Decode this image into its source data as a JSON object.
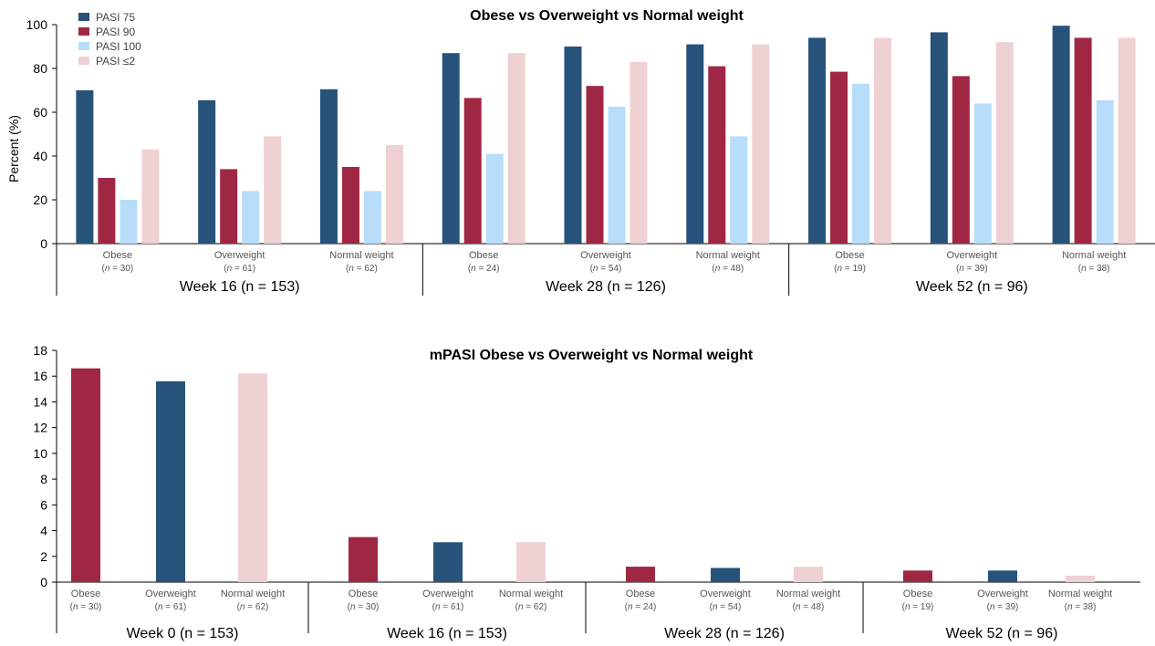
{
  "colors": {
    "PASI 75": "#27527a",
    "PASI 90": "#a02743",
    "PASI 100": "#b7ddfa",
    "PASI ≤2": "#efd1d3"
  },
  "chart_data": [
    {
      "type": "bar",
      "title": "Obese vs Overweight vs Normal weight",
      "ylabel": "Percent (%)",
      "ylim": [
        0,
        100
      ],
      "yticks": [
        "0",
        "20",
        "40",
        "60",
        "80",
        "100"
      ],
      "legend_position": "top-left",
      "series_names": [
        "PASI 75",
        "PASI 90",
        "PASI 100",
        "PASI ≤2"
      ],
      "groups": [
        {
          "week": "Week 16 (n = 153)",
          "categories": [
            {
              "label": "Obese",
              "n": "(n = 30)",
              "values": [
                70,
                30,
                20,
                43
              ]
            },
            {
              "label": "Overweight",
              "n": "(n = 61)",
              "values": [
                65.5,
                34,
                24,
                49
              ]
            },
            {
              "label": "Normal weight",
              "n": "(n = 62)",
              "values": [
                70.5,
                35,
                24,
                45
              ]
            }
          ]
        },
        {
          "week": "Week 28 (n = 126)",
          "categories": [
            {
              "label": "Obese",
              "n": "(n = 24)",
              "values": [
                87,
                66.5,
                41,
                87
              ]
            },
            {
              "label": "Overweight",
              "n": "(n = 54)",
              "values": [
                90,
                72,
                62.5,
                83
              ]
            },
            {
              "label": "Normal weight",
              "n": "(n = 48)",
              "values": [
                91,
                81,
                49,
                91
              ]
            }
          ]
        },
        {
          "week": "Week 52 (n = 96)",
          "categories": [
            {
              "label": "Obese",
              "n": "(n = 19)",
              "values": [
                94,
                78.5,
                73,
                94
              ]
            },
            {
              "label": "Overweight",
              "n": "(n = 39)",
              "values": [
                96.5,
                76.5,
                64,
                92
              ]
            },
            {
              "label": "Normal weight",
              "n": "(n = 38)",
              "values": [
                99.5,
                94,
                65.5,
                94
              ]
            }
          ]
        }
      ]
    },
    {
      "type": "bar",
      "title": "mPASI Obese vs Overweight vs Normal weight",
      "ylabel": "",
      "ylim": [
        0,
        18
      ],
      "yticks": [
        "0",
        "2",
        "4",
        "6",
        "8",
        "10",
        "12",
        "14",
        "16",
        "18"
      ],
      "groups": [
        {
          "week": "Week 0 (n = 153)",
          "categories": [
            {
              "label": "Obese",
              "n": "(n = 30)",
              "value": 16.6,
              "color": "#a02743"
            },
            {
              "label": "Overweight",
              "n": "(n = 61)",
              "value": 15.6,
              "color": "#27527a"
            },
            {
              "label": "Normal weight",
              "n": "(n = 62)",
              "value": 16.2,
              "color": "#efd1d3"
            }
          ]
        },
        {
          "week": "Week 16 (n = 153)",
          "categories": [
            {
              "label": "Obese",
              "n": "(n = 30)",
              "value": 3.5,
              "color": "#a02743"
            },
            {
              "label": "Overweight",
              "n": "(n = 61)",
              "value": 3.1,
              "color": "#27527a"
            },
            {
              "label": "Normal weight",
              "n": "(n = 62)",
              "value": 3.1,
              "color": "#efd1d3"
            }
          ]
        },
        {
          "week": "Week 28 (n = 126)",
          "categories": [
            {
              "label": "Obese",
              "n": "(n = 24)",
              "value": 1.2,
              "color": "#a02743"
            },
            {
              "label": "Overweight",
              "n": "(n = 54)",
              "value": 1.1,
              "color": "#27527a"
            },
            {
              "label": "Normal weight",
              "n": "(n = 48)",
              "value": 1.2,
              "color": "#efd1d3"
            }
          ]
        },
        {
          "week": "Week 52 (n = 96)",
          "categories": [
            {
              "label": "Obese",
              "n": "(n = 19)",
              "value": 0.9,
              "color": "#a02743"
            },
            {
              "label": "Overweight",
              "n": "(n = 39)",
              "value": 0.9,
              "color": "#27527a"
            },
            {
              "label": "Normal weight",
              "n": "(n = 38)",
              "value": 0.5,
              "color": "#efd1d3"
            }
          ]
        }
      ]
    }
  ]
}
